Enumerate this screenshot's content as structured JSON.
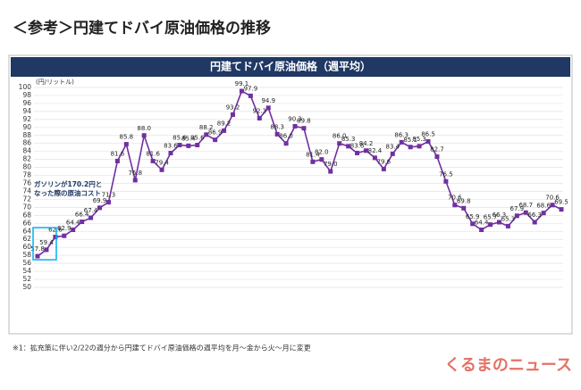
{
  "page_title": "＜参考＞円建てドバイ原油価格の推移",
  "footnote": "※1：拡充策に伴い2/22の週分から円建てドバイ原油価格の週平均を月～金から火～月に変更",
  "watermark": "くるまのニュース",
  "chart_data": {
    "type": "line",
    "title": "円建てドバイ原油価格（週平均）",
    "y_label": "(円/リットル)",
    "annotation": "ガソリンが170.2円と なった際の原油コスト",
    "color": "#7030a0",
    "grid": true,
    "ylim": [
      50,
      100
    ],
    "yticks": [
      50,
      52,
      54,
      56,
      58,
      60,
      62,
      64,
      66,
      68,
      70,
      72,
      74,
      76,
      78,
      80,
      82,
      84,
      86,
      88,
      90,
      92,
      94,
      96,
      98,
      100
    ],
    "values": [
      57.8,
      59.4,
      62.6,
      62.9,
      64.4,
      66.4,
      67.4,
      69.9,
      71.3,
      81.6,
      85.8,
      76.8,
      88.0,
      81.6,
      79.4,
      83.6,
      85.6,
      85.4,
      85.6,
      88.2,
      86.9,
      89.2,
      93.2,
      99.1,
      97.9,
      92.3,
      94.9,
      88.3,
      86.0,
      90.3,
      89.8,
      81.4,
      82.0,
      79.0,
      86.0,
      85.3,
      83.6,
      84.2,
      82.4,
      79.6,
      83.4,
      86.3,
      85.1,
      85.3,
      86.5,
      82.7,
      76.5,
      70.6,
      69.8,
      65.9,
      64.4,
      65.7,
      66.3,
      65.3,
      67.9,
      68.7,
      66.3,
      68.6,
      70.6,
      69.5
    ],
    "value_labels": [
      "57.8",
      "59.4",
      "62.6",
      "62.9",
      "64.4",
      "66.4",
      "67.4",
      "69.9",
      "71.3",
      "81.6",
      "85.8",
      "76.8",
      "88.0",
      "81.6",
      "79.4",
      "83.6",
      "85.6",
      "85.4",
      "85.6",
      "88.2",
      "86.9",
      "89.2",
      "93.2",
      "99.1",
      "97.9",
      "92.3",
      "94.9",
      "88.3",
      "86.0",
      "90.3",
      "89.8",
      "81.4",
      "82.0",
      "79.0",
      "86.0",
      "85.3",
      "83.6",
      "84.2",
      "82.4",
      "79.6",
      "83.4",
      "86.3",
      "85.1",
      "85.3",
      "86.5",
      "82.7",
      "76.5",
      "70.6",
      "69.8",
      "65.9",
      "64.4",
      "65.7",
      "66.3",
      "65.3",
      "67.9",
      "68.7",
      "66.3",
      "68.6",
      "70.6",
      "69.5"
    ]
  }
}
